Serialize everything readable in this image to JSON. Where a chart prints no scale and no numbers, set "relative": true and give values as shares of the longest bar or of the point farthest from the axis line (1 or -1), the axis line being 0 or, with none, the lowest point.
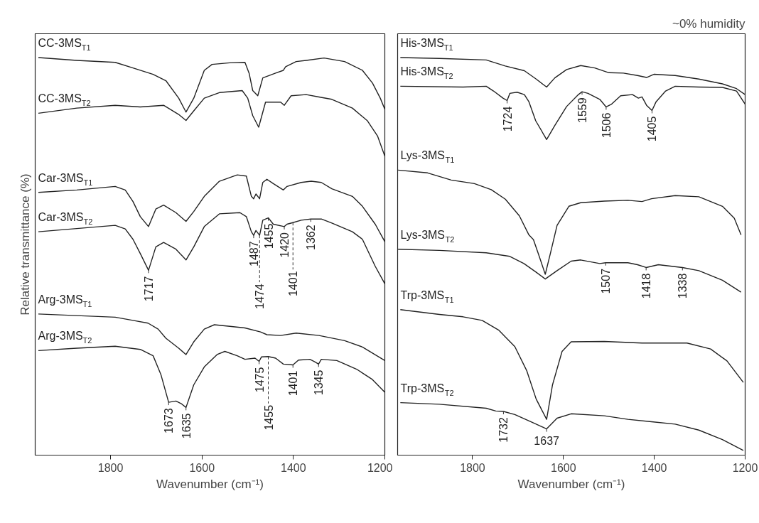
{
  "chart_data": [
    {
      "type": "line",
      "relative": true,
      "xlim": [
        1965,
        1200
      ],
      "xticks": [
        1800,
        1600,
        1400,
        1200
      ],
      "xlabel": "Wavenumber (cm⁻¹)",
      "ylabel": "Relative transmittance (%)",
      "tick_labels": "x",
      "grid": false,
      "series": [
        {
          "name": "CC-3MS$_{T1}$",
          "color": "#222222",
          "x": [
            1958,
            1874,
            1790,
            1751,
            1707,
            1679,
            1651,
            1635,
            1618,
            1595,
            1578,
            1539,
            1506,
            1497,
            1489,
            1478,
            1467,
            1439,
            1422,
            1417,
            1394,
            1372,
            1333,
            1288,
            1249,
            1227,
            1210,
            1200
          ],
          "values": [
            1.0,
            0.993,
            0.988,
            0.974,
            0.958,
            0.942,
            0.898,
            0.863,
            0.898,
            0.968,
            0.983,
            0.987,
            0.988,
            0.961,
            0.917,
            0.904,
            0.949,
            0.961,
            0.968,
            0.977,
            0.99,
            0.993,
            0.999,
            0.99,
            0.968,
            0.936,
            0.898,
            0.87
          ]
        },
        {
          "name": "CC-3MS$_{T2}$",
          "color": "#222222",
          "x": [
            1958,
            1874,
            1790,
            1735,
            1684,
            1651,
            1635,
            1618,
            1595,
            1562,
            1512,
            1500,
            1489,
            1476,
            1461,
            1428,
            1420,
            1405,
            1372,
            1344,
            1316,
            1271,
            1238,
            1216,
            1200
          ],
          "values": [
            0.86,
            0.873,
            0.88,
            0.876,
            0.88,
            0.857,
            0.842,
            0.866,
            0.898,
            0.912,
            0.917,
            0.898,
            0.854,
            0.825,
            0.888,
            0.888,
            0.88,
            0.904,
            0.907,
            0.901,
            0.895,
            0.873,
            0.841,
            0.803,
            0.752
          ]
        },
        {
          "name": "Car-3MS$_{T1}$",
          "color": "#222222",
          "x": [
            1958,
            1874,
            1790,
            1768,
            1751,
            1735,
            1717,
            1701,
            1684,
            1657,
            1635,
            1618,
            1595,
            1562,
            1523,
            1503,
            1492,
            1487,
            1482,
            1474,
            1467,
            1458,
            1444,
            1422,
            1414,
            1383,
            1361,
            1339,
            1316,
            1271,
            1249,
            1221,
            1200
          ],
          "values": [
            0.661,
            0.667,
            0.676,
            0.667,
            0.638,
            0.6,
            0.575,
            0.619,
            0.629,
            0.61,
            0.588,
            0.613,
            0.651,
            0.689,
            0.705,
            0.702,
            0.651,
            0.645,
            0.657,
            0.645,
            0.686,
            0.694,
            0.683,
            0.667,
            0.676,
            0.686,
            0.689,
            0.686,
            0.67,
            0.651,
            0.626,
            0.581,
            0.537
          ]
        },
        {
          "name": "Car-3MS$_{T2}$",
          "color": "#222222",
          "x": [
            1958,
            1874,
            1790,
            1768,
            1751,
            1735,
            1717,
            1701,
            1684,
            1657,
            1635,
            1618,
            1595,
            1562,
            1517,
            1503,
            1492,
            1487,
            1482,
            1474,
            1467,
            1455,
            1444,
            1420,
            1414,
            1401,
            1383,
            1362,
            1339,
            1316,
            1271,
            1249,
            1221,
            1200
          ],
          "values": [
            0.562,
            0.57,
            0.578,
            0.569,
            0.543,
            0.507,
            0.465,
            0.524,
            0.535,
            0.518,
            0.491,
            0.524,
            0.575,
            0.607,
            0.61,
            0.6,
            0.562,
            0.553,
            0.565,
            0.553,
            0.591,
            0.597,
            0.581,
            0.575,
            0.581,
            0.585,
            0.591,
            0.594,
            0.594,
            0.584,
            0.562,
            0.543,
            0.475,
            0.431
          ]
        },
        {
          "name": "Arg-3MS$_{T1}$",
          "color": "#222222",
          "x": [
            1958,
            1874,
            1790,
            1751,
            1718,
            1696,
            1679,
            1651,
            1635,
            1618,
            1595,
            1573,
            1539,
            1506,
            1472,
            1458,
            1428,
            1394,
            1344,
            1288,
            1249,
            1200
          ],
          "values": [
            0.355,
            0.351,
            0.347,
            0.339,
            0.332,
            0.317,
            0.294,
            0.269,
            0.253,
            0.285,
            0.317,
            0.328,
            0.324,
            0.32,
            0.31,
            0.303,
            0.301,
            0.307,
            0.301,
            0.288,
            0.272,
            0.238
          ]
        },
        {
          "name": "Arg-3MS$_{T2}$",
          "color": "#222222",
          "x": [
            1958,
            1874,
            1790,
            1735,
            1707,
            1690,
            1673,
            1657,
            1646,
            1635,
            1618,
            1595,
            1567,
            1550,
            1523,
            1506,
            1484,
            1475,
            1470,
            1455,
            1439,
            1422,
            1401,
            1389,
            1364,
            1352,
            1345,
            1339,
            1305,
            1260,
            1227,
            1200
          ],
          "values": [
            0.263,
            0.269,
            0.274,
            0.266,
            0.25,
            0.203,
            0.133,
            0.136,
            0.13,
            0.12,
            0.177,
            0.222,
            0.253,
            0.261,
            0.25,
            0.241,
            0.244,
            0.236,
            0.247,
            0.248,
            0.244,
            0.229,
            0.227,
            0.239,
            0.241,
            0.234,
            0.229,
            0.241,
            0.238,
            0.215,
            0.19,
            0.158
          ]
        }
      ],
      "annotations": [
        {
          "text": "1455",
          "x": 1455,
          "y": 0.597
        },
        {
          "text": "1401",
          "x": 1401,
          "y": 0.585
        },
        {
          "text": "1717",
          "x": 1717,
          "y": 0.465
        },
        {
          "text": "1487",
          "x": 1487,
          "y": 0.553
        },
        {
          "text": "1474",
          "x": 1474,
          "y": 0.553
        },
        {
          "text": "1420",
          "x": 1420,
          "y": 0.575
        },
        {
          "text": "1362",
          "x": 1362,
          "y": 0.594
        },
        {
          "text": "1673",
          "x": 1673,
          "y": 0.133
        },
        {
          "text": "1635",
          "x": 1635,
          "y": 0.12
        },
        {
          "text": "1475",
          "x": 1475,
          "y": 0.236
        },
        {
          "text": "1455",
          "x": 1455,
          "y": 0.248
        },
        {
          "text": "1401",
          "x": 1401,
          "y": 0.227
        },
        {
          "text": "1345",
          "x": 1345,
          "y": 0.229
        }
      ]
    },
    {
      "type": "line",
      "relative": true,
      "title": "~0% humidity",
      "xlim": [
        1965,
        1200
      ],
      "xticks": [
        1800,
        1600,
        1400,
        1200
      ],
      "xlabel": "Wavenumber (cm⁻¹)",
      "tick_labels": "x",
      "grid": false,
      "series": [
        {
          "name": "His-3MS$_{T1}$",
          "color": "#222222",
          "x": [
            1959,
            1873,
            1770,
            1728,
            1686,
            1660,
            1637,
            1619,
            1593,
            1562,
            1531,
            1500,
            1468,
            1437,
            1417,
            1401,
            1354,
            1302,
            1250,
            1219,
            1200
          ],
          "values": [
            1.0,
            0.998,
            0.994,
            0.979,
            0.967,
            0.946,
            0.926,
            0.949,
            0.97,
            0.98,
            0.974,
            0.962,
            0.961,
            0.955,
            0.95,
            0.958,
            0.955,
            0.946,
            0.934,
            0.922,
            0.907
          ]
        },
        {
          "name": "His-3MS$_{T2}$",
          "color": "#222222",
          "x": [
            1959,
            1821,
            1770,
            1754,
            1733,
            1724,
            1718,
            1702,
            1686,
            1676,
            1661,
            1637,
            1619,
            1593,
            1567,
            1559,
            1546,
            1520,
            1506,
            1494,
            1474,
            1448,
            1435,
            1427,
            1417,
            1405,
            1396,
            1375,
            1354,
            1302,
            1250,
            1219,
            1200
          ],
          "values": [
            0.928,
            0.926,
            0.928,
            0.916,
            0.898,
            0.892,
            0.91,
            0.913,
            0.907,
            0.889,
            0.841,
            0.794,
            0.829,
            0.877,
            0.907,
            0.914,
            0.91,
            0.895,
            0.876,
            0.883,
            0.904,
            0.907,
            0.898,
            0.901,
            0.88,
            0.867,
            0.889,
            0.916,
            0.928,
            0.926,
            0.925,
            0.916,
            0.883
          ]
        },
        {
          "name": "Lys-3MS$_{T1}$",
          "color": "#222222",
          "x": [
            1964,
            1899,
            1847,
            1796,
            1759,
            1728,
            1697,
            1676,
            1666,
            1655,
            1640,
            1629,
            1614,
            1588,
            1562,
            1510,
            1458,
            1427,
            1406,
            1354,
            1302,
            1250,
            1224,
            1209
          ],
          "values": [
            0.717,
            0.71,
            0.692,
            0.683,
            0.668,
            0.644,
            0.602,
            0.554,
            0.542,
            0.506,
            0.455,
            0.506,
            0.578,
            0.626,
            0.635,
            0.639,
            0.641,
            0.638,
            0.645,
            0.653,
            0.65,
            0.626,
            0.596,
            0.554
          ]
        },
        {
          "name": "Lys-3MS$_{T2}$",
          "color": "#222222",
          "x": [
            1964,
            1873,
            1770,
            1718,
            1687,
            1661,
            1640,
            1614,
            1583,
            1562,
            1520,
            1507,
            1458,
            1437,
            1418,
            1391,
            1338,
            1302,
            1250,
            1209
          ],
          "values": [
            0.518,
            0.515,
            0.509,
            0.5,
            0.482,
            0.461,
            0.443,
            0.464,
            0.488,
            0.491,
            0.482,
            0.484,
            0.484,
            0.479,
            0.472,
            0.479,
            0.472,
            0.464,
            0.44,
            0.41
          ]
        },
        {
          "name": "Trp-3MS$_{T1}$",
          "color": "#222222",
          "x": [
            1959,
            1873,
            1821,
            1779,
            1743,
            1707,
            1681,
            1660,
            1637,
            1624,
            1603,
            1583,
            1510,
            1427,
            1328,
            1276,
            1240,
            1204
          ],
          "values": [
            0.366,
            0.354,
            0.348,
            0.339,
            0.315,
            0.273,
            0.213,
            0.141,
            0.09,
            0.177,
            0.261,
            0.285,
            0.286,
            0.282,
            0.282,
            0.267,
            0.237,
            0.183
          ]
        },
        {
          "name": "Trp-3MS$_{T2}$",
          "color": "#222222",
          "x": [
            1959,
            1873,
            1770,
            1749,
            1732,
            1707,
            1666,
            1637,
            1614,
            1583,
            1510,
            1458,
            1406,
            1354,
            1302,
            1250,
            1204
          ],
          "values": [
            0.132,
            0.128,
            0.118,
            0.111,
            0.11,
            0.102,
            0.081,
            0.066,
            0.093,
            0.104,
            0.099,
            0.09,
            0.084,
            0.078,
            0.063,
            0.039,
            0.012
          ]
        }
      ],
      "annotations": [
        {
          "text": "1724",
          "x": 1724,
          "y": 0.892
        },
        {
          "text": "1559",
          "x": 1559,
          "y": 0.914
        },
        {
          "text": "1506",
          "x": 1506,
          "y": 0.876
        },
        {
          "text": "1405",
          "x": 1405,
          "y": 0.867
        },
        {
          "text": "1507",
          "x": 1507,
          "y": 0.484
        },
        {
          "text": "1418",
          "x": 1418,
          "y": 0.472
        },
        {
          "text": "1338",
          "x": 1338,
          "y": 0.472
        },
        {
          "text": "1732",
          "x": 1732,
          "y": 0.11
        },
        {
          "text": "1637",
          "x": 1637,
          "y": 0.066
        }
      ]
    }
  ]
}
